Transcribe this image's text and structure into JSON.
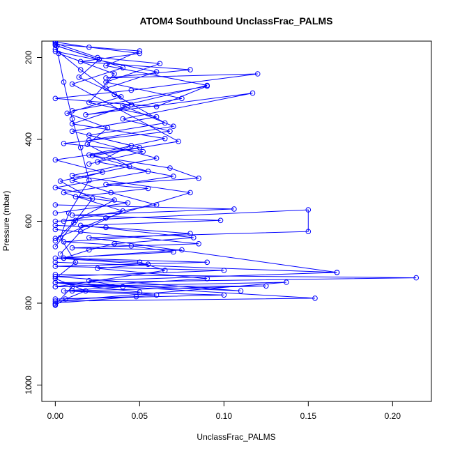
{
  "chart_data": {
    "type": "line",
    "title": "ATOM4 Southbound UnclassFrac_PALMS",
    "xlabel": "UnclassFrac_PALMS",
    "ylabel": "Pressure (mbar)",
    "xlim": [
      -0.008,
      0.223
    ],
    "ylim": [
      1040,
      160
    ],
    "y_reversed": true,
    "x_ticks": [
      "0.00",
      "0.05",
      "0.10",
      "0.15",
      "0.20"
    ],
    "x_tick_values": [
      0.0,
      0.05,
      0.1,
      0.15,
      0.2
    ],
    "y_ticks": [
      "200",
      "400",
      "600",
      "800",
      "1000"
    ],
    "y_tick_values": [
      200,
      400,
      600,
      800,
      1000
    ],
    "grid": false,
    "series_color": "#0000ff",
    "marker": "open-circle",
    "series": [
      {
        "x": [
          0.0,
          0.02,
          0.05,
          0.015,
          0.08,
          0.03,
          0.12,
          0.045,
          0.0,
          0.06,
          0.09,
          0.01
        ],
        "y": [
          162,
          175,
          190,
          210,
          230,
          250,
          240,
          280,
          300,
          320,
          270,
          330
        ]
      },
      {
        "x": [
          0.0,
          0.025,
          0.062,
          0.03,
          0.075,
          0.018,
          0.117,
          0.04,
          0.068,
          0.005,
          0.052,
          0.02
        ],
        "y": [
          165,
          200,
          215,
          260,
          300,
          340,
          287,
          350,
          380,
          410,
          430,
          460
        ]
      },
      {
        "x": [
          0.0,
          0.04,
          0.01,
          0.073,
          0.022,
          0.068,
          0.085,
          0.03,
          0.055,
          0.012,
          0.043,
          0.0
        ],
        "y": [
          170,
          225,
          265,
          405,
          440,
          470,
          495,
          510,
          520,
          540,
          555,
          580
        ]
      },
      {
        "x": [
          0.0,
          0.015,
          0.035,
          0.065,
          0.02,
          0.05,
          0.0,
          0.028,
          0.01,
          0.033,
          0.06,
          0.005
        ],
        "y": [
          180,
          230,
          290,
          360,
          390,
          420,
          450,
          480,
          500,
          530,
          560,
          600
        ]
      },
      {
        "x": [
          0.0,
          0.106,
          0.01,
          0.098,
          0.015,
          0.082,
          0.035,
          0.02,
          0.005,
          0.05,
          0.065,
          0.0
        ],
        "y": [
          560,
          570,
          585,
          598,
          610,
          640,
          655,
          670,
          690,
          700,
          720,
          760
        ]
      },
      {
        "x": [
          0.0,
          0.15,
          0.15,
          0.02,
          0.167,
          0.0,
          0.167,
          0.02,
          0.04,
          0.005,
          0.06,
          0.0
        ],
        "y": [
          600,
          572,
          625,
          640,
          725,
          700,
          725,
          745,
          760,
          770,
          780,
          800
        ]
      },
      {
        "x": [
          0.0,
          0.214,
          0.0,
          0.154,
          0.0,
          0.137,
          0.0,
          0.125,
          0.01,
          0.1,
          0.0,
          0.048
        ],
        "y": [
          730,
          738,
          750,
          788,
          795,
          749,
          760,
          758,
          770,
          780,
          790,
          784
        ]
      },
      {
        "x": [
          0.0,
          0.085,
          0.01,
          0.075,
          0.005,
          0.09,
          0.0,
          0.1,
          0.0,
          0.11,
          0.0,
          0.05
        ],
        "y": [
          620,
          655,
          665,
          670,
          690,
          700,
          710,
          720,
          735,
          770,
          750,
          773
        ]
      },
      {
        "x": [
          0.0,
          0.03,
          0.08,
          0.005,
          0.045,
          0.07,
          0.0,
          0.055,
          0.025,
          0.09,
          0.01,
          0.0
        ],
        "y": [
          610,
          615,
          630,
          650,
          660,
          675,
          690,
          705,
          715,
          740,
          760,
          803
        ]
      },
      {
        "x": [
          0.0,
          0.005,
          0.01,
          0.015,
          0.02,
          0.008,
          0.003,
          0.012,
          0.0,
          0.018,
          0.006,
          0.0
        ],
        "y": [
          160,
          260,
          350,
          420,
          500,
          580,
          640,
          700,
          740,
          770,
          790,
          805
        ]
      },
      {
        "x": [
          0.002,
          0.035,
          0.02,
          0.06,
          0.01,
          0.045,
          0.025,
          0.07,
          0.005,
          0.04,
          0.015,
          0.003
        ],
        "y": [
          190,
          240,
          310,
          345,
          380,
          415,
          455,
          490,
          530,
          575,
          625,
          680
        ]
      },
      {
        "x": [
          0.0,
          0.05,
          0.03,
          0.09,
          0.04,
          0.07,
          0.02,
          0.06,
          0.01,
          0.08,
          0.03,
          0.0
        ],
        "y": [
          168,
          184,
          220,
          268,
          318,
          368,
          402,
          446,
          488,
          530,
          592,
          642
        ]
      },
      {
        "x": [
          0.0,
          0.06,
          0.03,
          0.045,
          0.01,
          0.065,
          0.02,
          0.055,
          0.0,
          0.035,
          0.012,
          0.0
        ],
        "y": [
          185,
          235,
          275,
          315,
          362,
          398,
          438,
          478,
          518,
          548,
          598,
          648
        ]
      },
      {
        "x": [
          0.001,
          0.026,
          0.014,
          0.039,
          0.007,
          0.031,
          0.019,
          0.044,
          0.003,
          0.022,
          0.011,
          0.0
        ],
        "y": [
          172,
          205,
          248,
          296,
          336,
          372,
          412,
          466,
          502,
          545,
          604,
          662
        ]
      }
    ]
  }
}
